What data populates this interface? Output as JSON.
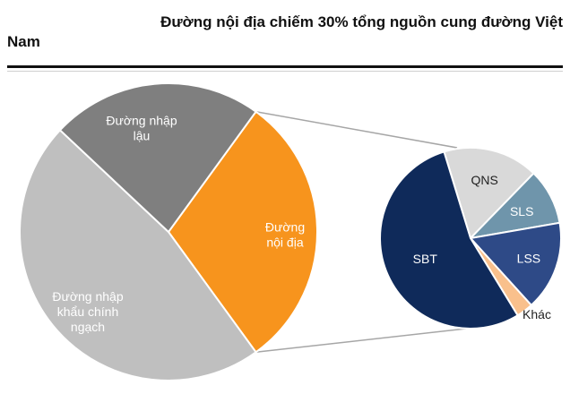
{
  "title_line1": "Đường nội địa chiếm 30% tổng nguồn cung đường Việt",
  "title_line2": "Nam",
  "chart_data": [
    {
      "type": "pie",
      "slices": [
        {
          "label_lines": [
            "Đường",
            "nội địa"
          ],
          "value": 30,
          "color": "#F7941D",
          "label_color": "#ffffff"
        },
        {
          "label_lines": [
            "Đường nhập",
            "khẩu chính",
            "ngạch"
          ],
          "value": 47,
          "color": "#BFBFBF",
          "label_color": "#ffffff"
        },
        {
          "label_lines": [
            "Đường nhập",
            "lậu"
          ],
          "value": 23,
          "color": "#7F7F7F",
          "label_color": "#ffffff"
        }
      ]
    },
    {
      "type": "pie",
      "slices": [
        {
          "label_lines": [
            "QNS"
          ],
          "value": 17,
          "color": "#D9D9D9",
          "label_color": "#222222"
        },
        {
          "label_lines": [
            "SLS"
          ],
          "value": 10,
          "color": "#6F95AB",
          "label_color": "#ffffff"
        },
        {
          "label_lines": [
            "LSS"
          ],
          "value": 16,
          "color": "#2E4A87",
          "label_color": "#ffffff"
        },
        {
          "label_lines": [
            "Khác"
          ],
          "value": 3,
          "color": "#F9C08C",
          "label_color": "#222222"
        },
        {
          "label_lines": [
            "SBT"
          ],
          "value": 54,
          "color": "#0F2A5A",
          "label_color": "#ffffff"
        }
      ]
    }
  ]
}
